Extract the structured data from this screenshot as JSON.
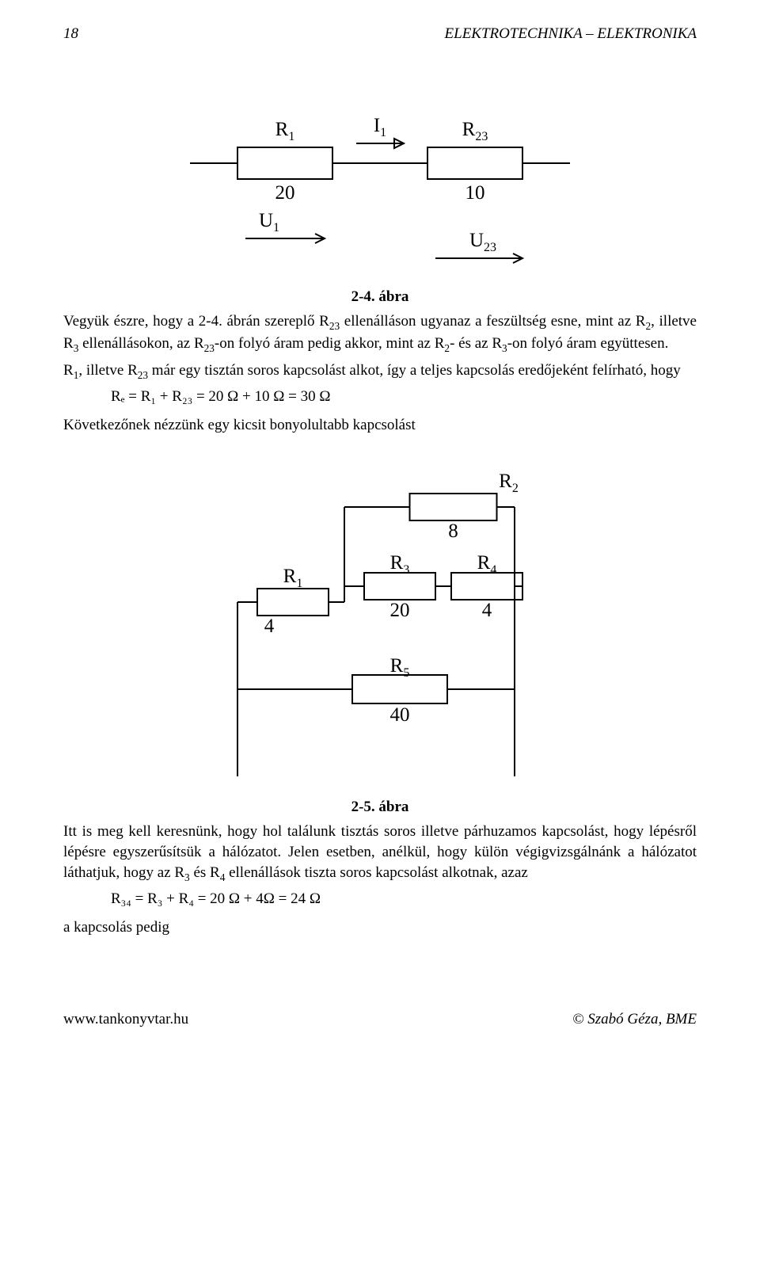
{
  "header": {
    "page": "18",
    "title": "ELEKTROTECHNIKA – ELEKTRONIKA"
  },
  "fig24": {
    "caption": "2-4. ábra",
    "R1": {
      "label": "R",
      "sub": "1",
      "value": "20"
    },
    "I1": {
      "label": "I",
      "sub": "1"
    },
    "R23": {
      "label": "R",
      "sub": "23",
      "value": "10"
    },
    "U1": {
      "label": "U",
      "sub": "1"
    },
    "U23": {
      "label": "U",
      "sub": "23"
    },
    "style": {
      "stroke": "#000",
      "stroke_width": 2,
      "bg": "#ffffff",
      "font_family": "Times New Roman",
      "label_fontsize": 25,
      "sub_fontsize": 16
    }
  },
  "para1": {
    "pre": "Vegyük észre, hogy a 2-4. ábrán szereplő R",
    "s1": "23",
    "t1": " ellenálláson ugyanaz a feszültség esne, mint az R",
    "s2": "2",
    "t2": ", illetve R",
    "s3": "3",
    "t3": " ellenállásokon, az R",
    "s4": "23",
    "t4": "-on folyó áram pedig akkor, mint az R",
    "s5": "2",
    "t5": "- és az R",
    "s6": "3",
    "t6": "-on folyó áram együttesen."
  },
  "para2": {
    "pre": "R",
    "s1": "1",
    "t1": ", illetve R",
    "s2": "23",
    "t2": " már egy tisztán soros kapcsolást alkot, így a teljes kapcsolás eredőjeként felírható, hogy"
  },
  "eq1": "Rₑ = R₁ + R₂₃ = 20 Ω + 10 Ω = 30 Ω",
  "para3": "Következőnek nézzünk egy kicsit bonyolultabb kapcsolást",
  "fig25": {
    "caption": "2-5. ábra",
    "R1": {
      "label": "R",
      "sub": "1",
      "value": "4"
    },
    "R2": {
      "label": "R",
      "sub": "2",
      "value": "8"
    },
    "R3": {
      "label": "R",
      "sub": "3",
      "value": "20"
    },
    "R4": {
      "label": "R",
      "sub": "4",
      "value": "4"
    },
    "R5": {
      "label": "R",
      "sub": "5",
      "value": "40"
    },
    "style": {
      "stroke": "#000",
      "stroke_width": 2,
      "bg": "#ffffff",
      "font_family": "Times New Roman",
      "label_fontsize": 25,
      "sub_fontsize": 16
    }
  },
  "para4": {
    "t0": "Itt is meg kell keresnünk, hogy hol találunk tisztás soros illetve párhuzamos kapcsolást, hogy lépésről lépésre egyszerűsítsük a hálózatot. Jelen esetben, anélkül, hogy külön végigvizsgálnánk a hálózatot láthatjuk, hogy az R",
    "s1": "3",
    "t1": " és R",
    "s2": "4",
    "t2": " ellenállások tiszta soros kapcsolást alkotnak, azaz"
  },
  "eq2": "R₃₄ = R₃ + R₄ = 20 Ω + 4Ω = 24 Ω",
  "para5": "a kapcsolás pedig",
  "footer": {
    "url": "www.tankonyvtar.hu",
    "credit": "© Szabó Géza, BME"
  }
}
